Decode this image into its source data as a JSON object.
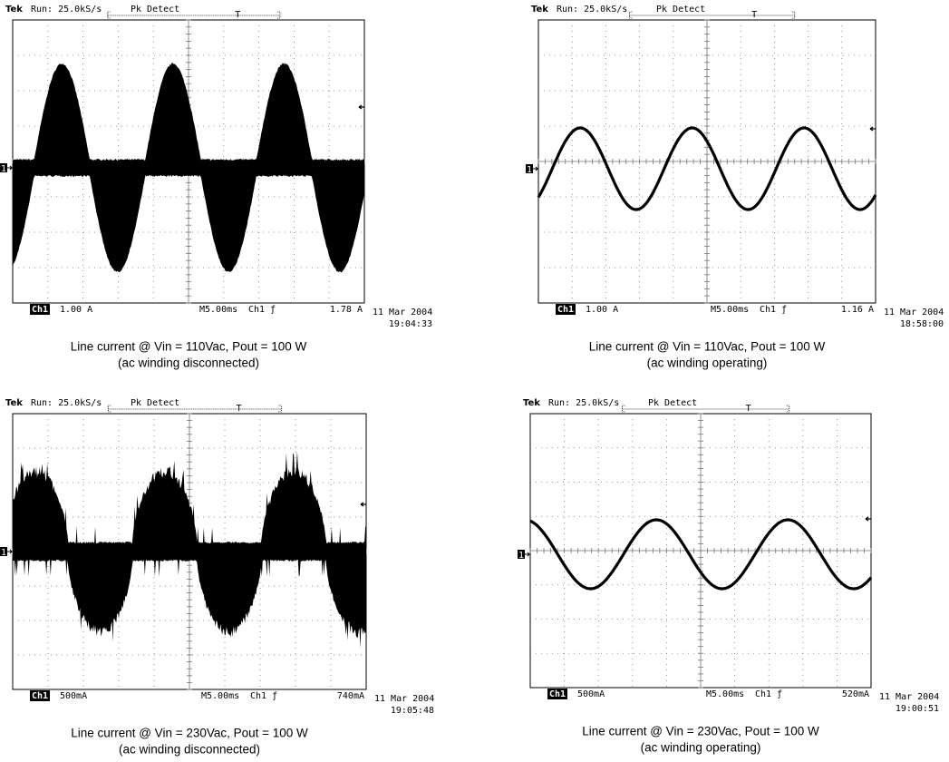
{
  "panels": [
    {
      "brand": "Tek",
      "status": "Run: 25.0kS/s",
      "mode": "Pk Detect",
      "trigger_mark": "T",
      "marker": "1",
      "channel": "Ch1",
      "scale": "1.00 A",
      "timebase": "M5.00ms",
      "trigger": "Ch1 ƒ",
      "trigger_level": "1.78 A",
      "date": "11 Mar 2004",
      "time": "19:04:33",
      "caption": [
        "Line current @ Vin = 110Vac, Pout = 100 W",
        "(ac winding disconnected)"
      ]
    },
    {
      "brand": "Tek",
      "status": "Run: 25.0kS/s",
      "mode": "Pk Detect",
      "trigger_mark": "T",
      "marker": "1",
      "channel": "Ch1",
      "scale": "1.00 A",
      "timebase": "M5.00ms",
      "trigger": "Ch1 ƒ",
      "trigger_level": "1.16 A",
      "date": "11 Mar 2004",
      "time": "18:58:00",
      "caption": [
        "Line current @ Vin = 110Vac, Pout = 100 W",
        "(ac winding operating)"
      ]
    },
    {
      "brand": "Tek",
      "status": "Run: 25.0kS/s",
      "mode": "Pk Detect",
      "trigger_mark": "T",
      "marker": "1",
      "channel": "Ch1",
      "scale": "500mA",
      "timebase": "M5.00ms",
      "trigger": "Ch1 ƒ",
      "trigger_level": "740mA",
      "date": "11 Mar 2004",
      "time": "19:05:48",
      "caption": [
        "Line current @ Vin = 230Vac, Pout = 100 W",
        "(ac winding disconnected)"
      ]
    },
    {
      "brand": "Tek",
      "status": "Run: 25.0kS/s",
      "mode": "Pk Detect",
      "trigger_mark": "T",
      "marker": "1",
      "channel": "Ch1",
      "scale": "500mA",
      "timebase": "M5.00ms",
      "trigger": "Ch1 ƒ",
      "trigger_level": "520mA",
      "date": "11 Mar 2004",
      "time": "19:00:51",
      "caption": [
        "Line current @ Vin = 230Vac, Pout = 100 W",
        "(ac winding operating)"
      ]
    }
  ]
}
